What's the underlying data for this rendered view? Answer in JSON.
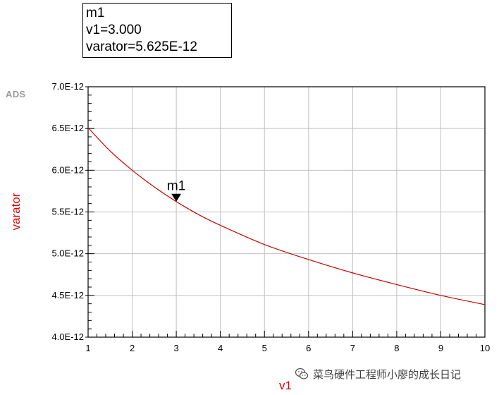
{
  "marker_readout": {
    "name": "m1",
    "x_line": "v1=3.000",
    "y_line": "varator=5.625E-12"
  },
  "logo": "ADS",
  "watermark": {
    "text": "菜鸟硬件工程师小廖的成长日记",
    "icon": "wechat-icon"
  },
  "chart_data": {
    "type": "line",
    "title": "",
    "xlabel": "v1",
    "ylabel": "varator",
    "xlim": [
      1,
      10
    ],
    "ylim": [
      4e-12,
      7e-12
    ],
    "x_ticks": [
      1,
      2,
      3,
      4,
      5,
      6,
      7,
      8,
      9,
      10
    ],
    "x_tick_labels": [
      "1",
      "2",
      "3",
      "4",
      "5",
      "6",
      "7",
      "8",
      "9",
      "10"
    ],
    "y_ticks": [
      4e-12,
      4.5e-12,
      5e-12,
      5.5e-12,
      6e-12,
      6.5e-12,
      7e-12
    ],
    "y_tick_labels": [
      "4.0E-12",
      "4.5E-12",
      "5.0E-12",
      "5.5E-12",
      "6.0E-12",
      "6.5E-12",
      "7.0E-12"
    ],
    "grid": true,
    "colors": {
      "line": "#cc0000",
      "axis_label": "#e00000",
      "grid": "#c0c0c0"
    },
    "series": [
      {
        "x": [
          1,
          1.5,
          2,
          2.5,
          3,
          3.5,
          4,
          5,
          6,
          7,
          8,
          9,
          10
        ],
        "y": [
          6.51e-12,
          6.23e-12,
          6e-12,
          5.8e-12,
          5.625e-12,
          5.47e-12,
          5.34e-12,
          5.11e-12,
          4.93e-12,
          4.77e-12,
          4.63e-12,
          4.5e-12,
          4.39e-12
        ]
      }
    ],
    "markers": [
      {
        "name": "m1",
        "x": 3.0,
        "y": 5.625e-12
      }
    ]
  }
}
